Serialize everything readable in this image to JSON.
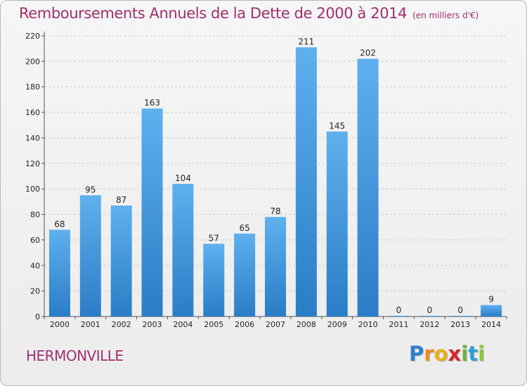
{
  "header": {
    "title": "Remboursements Annuels de la Dette de 2000 à 2014",
    "unit": "(en milliers d'€)"
  },
  "footer": {
    "commune": "HERMONVILLE",
    "logo_letters": [
      {
        "ch": "P",
        "color": "#2e7fd0"
      },
      {
        "ch": "r",
        "color": "#f08a1c"
      },
      {
        "ch": "o",
        "color": "#e8b21a"
      },
      {
        "ch": "x",
        "color": "#d6262c"
      },
      {
        "ch": "i",
        "color": "#6cb33f"
      },
      {
        "ch": "t",
        "color": "#2e9fd6"
      },
      {
        "ch": "i",
        "color": "#8cc63f"
      }
    ]
  },
  "colors": {
    "bar_top": "#5fb0ee",
    "bar_bottom": "#2a7dc6",
    "title": "#a0306f",
    "grid": "#cccccc"
  },
  "chart_data": {
    "type": "bar",
    "title": "Remboursements Annuels de la Dette de 2000 à 2014",
    "subtitle": "(en milliers d'€)",
    "xlabel": "",
    "ylabel": "",
    "categories": [
      "2000",
      "2001",
      "2002",
      "2003",
      "2004",
      "2005",
      "2006",
      "2007",
      "2008",
      "2009",
      "2010",
      "2011",
      "2012",
      "2013",
      "2014"
    ],
    "values": [
      68,
      95,
      87,
      163,
      104,
      57,
      65,
      78,
      211,
      145,
      202,
      0,
      0,
      0,
      9
    ],
    "ylim": [
      0,
      220
    ],
    "yticks": [
      0,
      20,
      40,
      60,
      80,
      100,
      120,
      140,
      160,
      180,
      200,
      220
    ],
    "grid": true,
    "legend": "none"
  }
}
